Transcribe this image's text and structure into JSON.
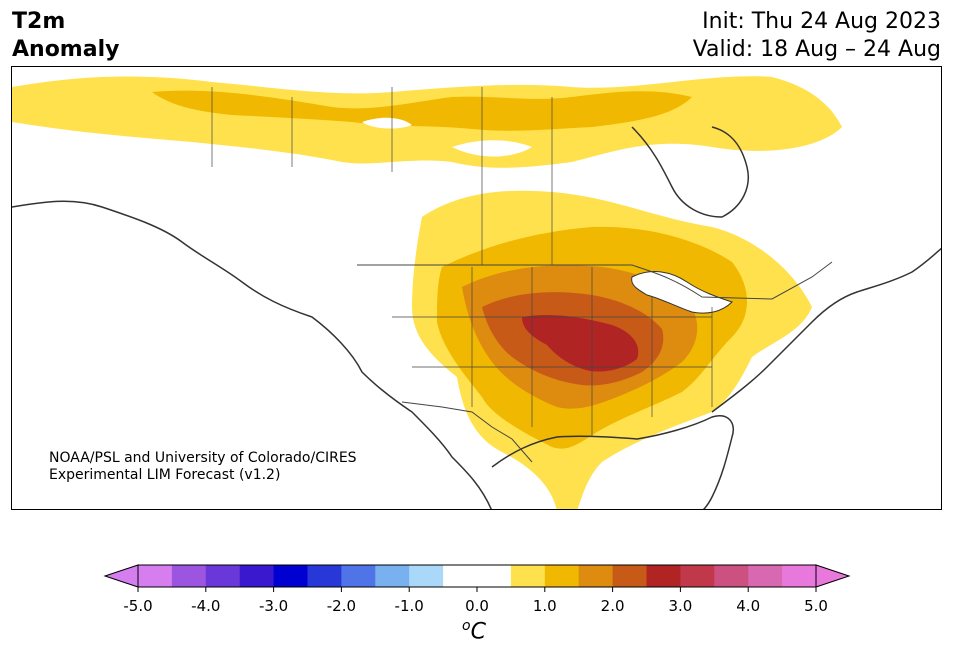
{
  "header": {
    "title_line1": "T2m",
    "title_line2": "Anomaly",
    "init_text": "Init: Thu 24 Aug 2023",
    "valid_text": "Valid: 18 Aug – 24 Aug"
  },
  "credit": {
    "line1": "NOAA/PSL and University of Colorado/CIRES",
    "line2": "Experimental LIM Forecast (v1.2)"
  },
  "colorbar": {
    "unit_base": "C",
    "unit_sup": "o",
    "tick_labels": [
      "-5.0",
      "-4.0",
      "-3.0",
      "-2.0",
      "-1.0",
      "0.0",
      "1.0",
      "2.0",
      "3.0",
      "4.0",
      "5.0"
    ],
    "under_color": "#d67ef0",
    "over_color": "#e878dc",
    "bin_colors": [
      "#d67ef0",
      "#9c55e0",
      "#6a38d8",
      "#3a18d0",
      "#0000d0",
      "#2838d8",
      "#4f74e8",
      "#78b0f0",
      "#aad8f8",
      "#ffffff",
      "#ffffff",
      "#ffe14d",
      "#f0b800",
      "#dd8c10",
      "#c85a18",
      "#b02424",
      "#c0384a",
      "#cc5080",
      "#d868b0",
      "#e878dc"
    ]
  },
  "map_colors": {
    "anom_0_5": "#ffe14d",
    "anom_1_0": "#f0b800",
    "anom_1_5": "#dd8c10",
    "anom_2_0": "#c85a18",
    "anom_2_5": "#b02424",
    "coast": "#333333",
    "border": "#444444"
  }
}
